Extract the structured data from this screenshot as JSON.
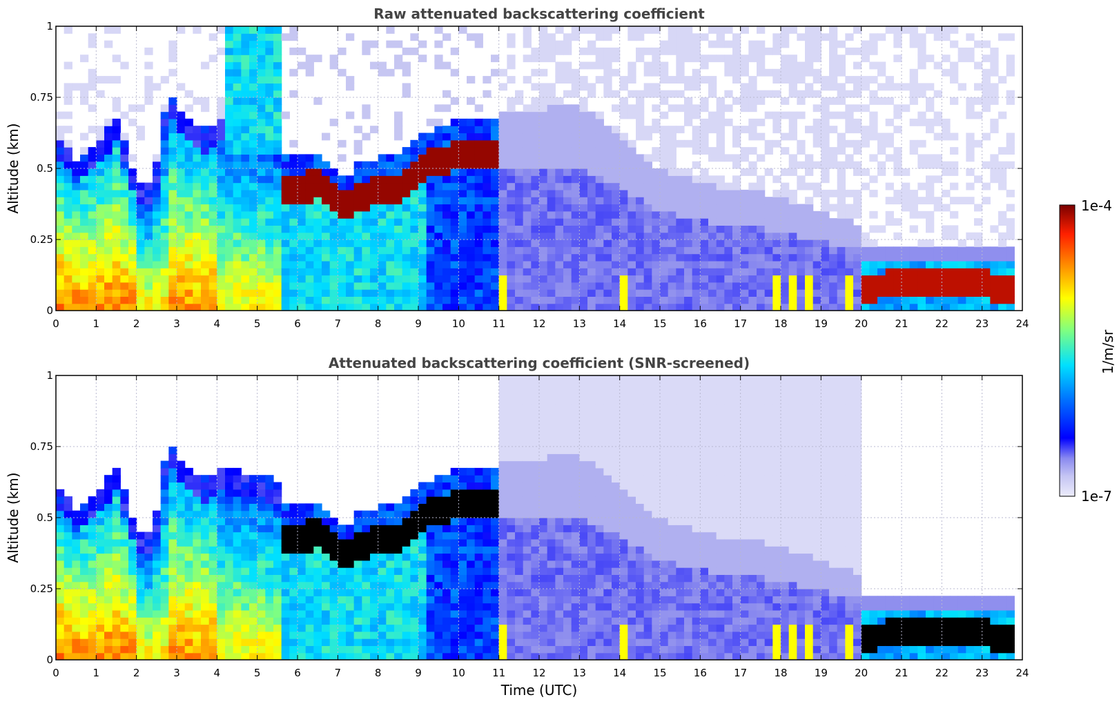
{
  "chart_data": [
    {
      "type": "heatmap",
      "title": "Raw attenuated backscattering coefficient",
      "xlabel": "",
      "ylabel": "Altitude (km)",
      "xlim": [
        0,
        24
      ],
      "ylim": [
        0,
        1
      ],
      "x_ticks": [
        "0",
        "1",
        "2",
        "3",
        "4",
        "5",
        "6",
        "7",
        "8",
        "9",
        "10",
        "11",
        "12",
        "13",
        "14",
        "15",
        "16",
        "17",
        "18",
        "19",
        "20",
        "21",
        "22",
        "23",
        "24"
      ],
      "y_ticks": [
        "0",
        "0.25",
        "0.5",
        "0.75",
        "1"
      ],
      "grid": true,
      "screened": false,
      "layers": {
        "boundary_layer_top_km": [
          [
            0,
            0.55
          ],
          [
            0.5,
            0.45
          ],
          [
            1,
            0.5
          ],
          [
            1.5,
            0.6
          ],
          [
            2,
            0.38
          ],
          [
            2.4,
            0.36
          ],
          [
            2.8,
            0.7
          ],
          [
            3.2,
            0.6
          ],
          [
            3.8,
            0.55
          ],
          [
            4.1,
            0.6
          ],
          [
            5.6,
            0.55
          ],
          [
            6,
            0.55
          ],
          [
            7,
            0.5
          ],
          [
            8,
            0.55
          ],
          [
            9,
            0.65
          ],
          [
            10,
            0.72
          ],
          [
            11.1,
            0.7
          ],
          [
            13,
            0.72
          ],
          [
            14,
            0.62
          ],
          [
            15,
            0.5
          ],
          [
            16,
            0.45
          ],
          [
            18,
            0.4
          ],
          [
            20,
            0.3
          ],
          [
            20.1,
            0.2
          ],
          [
            22,
            0.2
          ],
          [
            23.8,
            0.2
          ]
        ],
        "cloud_layer_km": [
          [
            5.7,
            0.43
          ],
          [
            6.5,
            0.44
          ],
          [
            7.2,
            0.35
          ],
          [
            7.5,
            0.4
          ],
          [
            8,
            0.42
          ],
          [
            8.5,
            0.43
          ],
          [
            9,
            0.5
          ],
          [
            10,
            0.55
          ],
          [
            11,
            0.55
          ],
          [
            20.2,
            0.08
          ],
          [
            21,
            0.1
          ],
          [
            22,
            0.09
          ],
          [
            23,
            0.09
          ],
          [
            23.8,
            0.08
          ]
        ],
        "data_end_hour": 23.8
      }
    },
    {
      "type": "heatmap",
      "title": "Attenuated backscattering coefficient (SNR-screened)",
      "xlabel": "Time (UTC)",
      "ylabel": "Altitude (km)",
      "xlim": [
        0,
        24
      ],
      "ylim": [
        0,
        1
      ],
      "x_ticks": [
        "0",
        "1",
        "2",
        "3",
        "4",
        "5",
        "6",
        "7",
        "8",
        "9",
        "10",
        "11",
        "12",
        "13",
        "14",
        "15",
        "16",
        "17",
        "18",
        "19",
        "20",
        "21",
        "22",
        "23",
        "24"
      ],
      "y_ticks": [
        "0",
        "0.25",
        "0.5",
        "0.75",
        "1"
      ],
      "grid": true,
      "screened": true,
      "saturated_color": "#000000"
    }
  ],
  "colorbar": {
    "label": "1/m/sr",
    "max_label": "1e-4",
    "min_label": "1e-7",
    "scale": "log",
    "range": [
      1e-07,
      0.0001
    ],
    "colormap": "jet with pale-blue low end",
    "stops": [
      "#e8e8fa",
      "#c6c6f2",
      "#8f8fee",
      "#0000ff",
      "#0080ff",
      "#00e0ff",
      "#80ff80",
      "#ffff00",
      "#ff9000",
      "#ff2000",
      "#7a0000"
    ]
  }
}
